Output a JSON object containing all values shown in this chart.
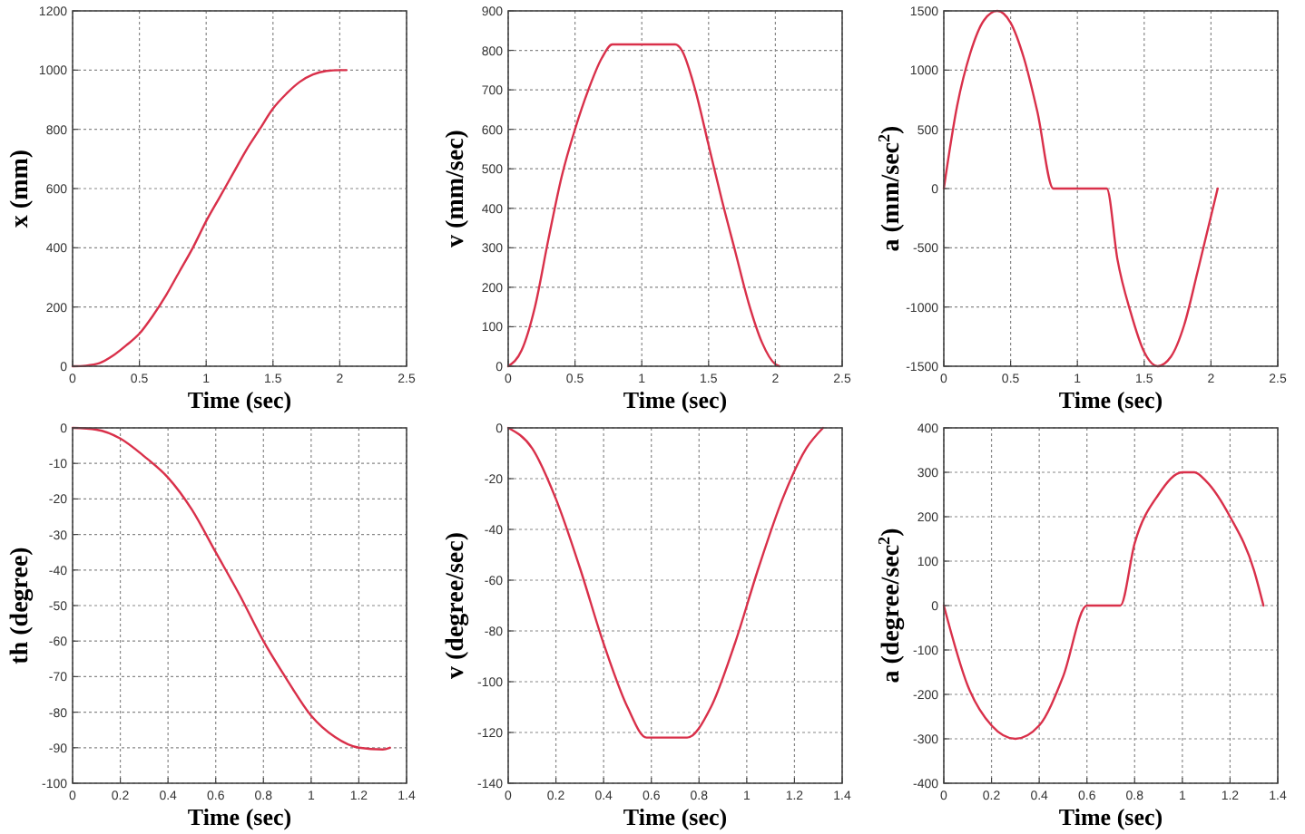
{
  "chart_data": [
    {
      "type": "line",
      "xlabel": "Time (sec)",
      "ylabel": "x (mm)",
      "xlim": [
        0,
        2.5
      ],
      "xticks": [
        0,
        0.5,
        1,
        1.5,
        2,
        2.5
      ],
      "ylim": [
        0,
        1200
      ],
      "yticks": [
        0,
        200,
        400,
        600,
        800,
        1000,
        1200
      ],
      "grid": true,
      "line_style": "solid",
      "series": [
        {
          "color": "#d9304a",
          "x": [
            0,
            0.1,
            0.2,
            0.3,
            0.4,
            0.5,
            0.6,
            0.7,
            0.8,
            0.9,
            1.0,
            1.1,
            1.2,
            1.3,
            1.4,
            1.5,
            1.6,
            1.7,
            1.8,
            1.9,
            2.0,
            2.05
          ],
          "values": [
            0,
            2,
            10,
            35,
            70,
            110,
            170,
            240,
            320,
            400,
            490,
            570,
            650,
            730,
            800,
            870,
            920,
            960,
            985,
            997,
            1000,
            1000
          ]
        }
      ]
    },
    {
      "type": "line",
      "xlabel": "Time (sec)",
      "ylabel": "v (mm/sec)",
      "xlim": [
        0,
        2.5
      ],
      "xticks": [
        0,
        0.5,
        1,
        1.5,
        2,
        2.5
      ],
      "ylim": [
        0,
        900
      ],
      "yticks": [
        0,
        100,
        200,
        300,
        400,
        500,
        600,
        700,
        800,
        900
      ],
      "grid": true,
      "line_style": "solid",
      "series": [
        {
          "color": "#d9304a",
          "x": [
            0,
            0.1,
            0.2,
            0.3,
            0.4,
            0.5,
            0.6,
            0.7,
            0.78,
            1.25,
            1.3,
            1.4,
            1.5,
            1.6,
            1.7,
            1.8,
            1.9,
            2.0,
            2.03
          ],
          "values": [
            0,
            40,
            150,
            320,
            480,
            600,
            700,
            780,
            815,
            815,
            800,
            700,
            560,
            420,
            290,
            160,
            60,
            5,
            0
          ]
        }
      ]
    },
    {
      "type": "line",
      "xlabel": "Time (sec)",
      "ylabel": "a (mm/sec$^{2}$)",
      "xlim": [
        0,
        2.5
      ],
      "xticks": [
        0,
        0.5,
        1,
        1.5,
        2,
        2.5
      ],
      "ylim": [
        -1500,
        1500
      ],
      "yticks": [
        -1500,
        -1000,
        -500,
        0,
        500,
        1000,
        1500
      ],
      "grid": true,
      "line_style": "solid",
      "series": [
        {
          "color": "#d9304a",
          "x": [
            0,
            0.1,
            0.2,
            0.3,
            0.4,
            0.5,
            0.6,
            0.7,
            0.82,
            1.22,
            1.3,
            1.4,
            1.5,
            1.6,
            1.7,
            1.8,
            1.9,
            2.05
          ],
          "values": [
            0,
            700,
            1150,
            1420,
            1500,
            1400,
            1100,
            650,
            0,
            0,
            -600,
            -1050,
            -1380,
            -1500,
            -1420,
            -1150,
            -700,
            0
          ]
        }
      ]
    },
    {
      "type": "line",
      "xlabel": "Time (sec)",
      "ylabel": "th (degree)",
      "xlim": [
        0,
        1.4
      ],
      "xticks": [
        0,
        0.2,
        0.4,
        0.6,
        0.8,
        1,
        1.2,
        1.4
      ],
      "ylim": [
        -100,
        0
      ],
      "yticks": [
        -100,
        -90,
        -80,
        -70,
        -60,
        -50,
        -40,
        -30,
        -20,
        -10,
        0
      ],
      "grid": true,
      "line_style": "solid",
      "series": [
        {
          "color": "#d9304a",
          "x": [
            0,
            0.1,
            0.2,
            0.3,
            0.4,
            0.5,
            0.6,
            0.7,
            0.8,
            0.9,
            1.0,
            1.1,
            1.2,
            1.3,
            1.33
          ],
          "values": [
            0,
            -0.5,
            -3,
            -8,
            -14,
            -23,
            -35,
            -47,
            -60,
            -71,
            -81,
            -87,
            -90,
            -90.5,
            -90
          ]
        }
      ]
    },
    {
      "type": "line",
      "xlabel": "Time (sec)",
      "ylabel": "v (degree/sec)",
      "xlim": [
        0,
        1.4
      ],
      "xticks": [
        0,
        0.2,
        0.4,
        0.6,
        0.8,
        1,
        1.2,
        1.4
      ],
      "ylim": [
        -140,
        0
      ],
      "yticks": [
        -140,
        -120,
        -100,
        -80,
        -60,
        -40,
        -20,
        0
      ],
      "grid": true,
      "line_style": "solid",
      "series": [
        {
          "color": "#d9304a",
          "x": [
            0,
            0.1,
            0.2,
            0.3,
            0.4,
            0.5,
            0.58,
            0.75,
            0.85,
            0.95,
            1.05,
            1.15,
            1.25,
            1.32
          ],
          "values": [
            0,
            -8,
            -28,
            -55,
            -85,
            -110,
            -122,
            -122,
            -110,
            -85,
            -55,
            -28,
            -8,
            0
          ]
        }
      ]
    },
    {
      "type": "line",
      "xlabel": "Time (sec)",
      "ylabel": "a (degree/sec$^{2}$)",
      "xlim": [
        0,
        1.4
      ],
      "xticks": [
        0,
        0.2,
        0.4,
        0.6,
        0.8,
        1,
        1.2,
        1.4
      ],
      "ylim": [
        -400,
        400
      ],
      "yticks": [
        -400,
        -300,
        -200,
        -100,
        0,
        100,
        200,
        300,
        400
      ],
      "grid": true,
      "line_style": "solid",
      "series": [
        {
          "color": "#d9304a",
          "x": [
            0,
            0.1,
            0.2,
            0.3,
            0.4,
            0.5,
            0.6,
            0.74,
            0.8,
            0.9,
            1.0,
            1.05,
            1.1,
            1.2,
            1.3,
            1.34
          ],
          "values": [
            0,
            -180,
            -270,
            -300,
            -270,
            -160,
            0,
            0,
            140,
            250,
            300,
            300,
            280,
            200,
            80,
            0
          ]
        }
      ]
    }
  ]
}
